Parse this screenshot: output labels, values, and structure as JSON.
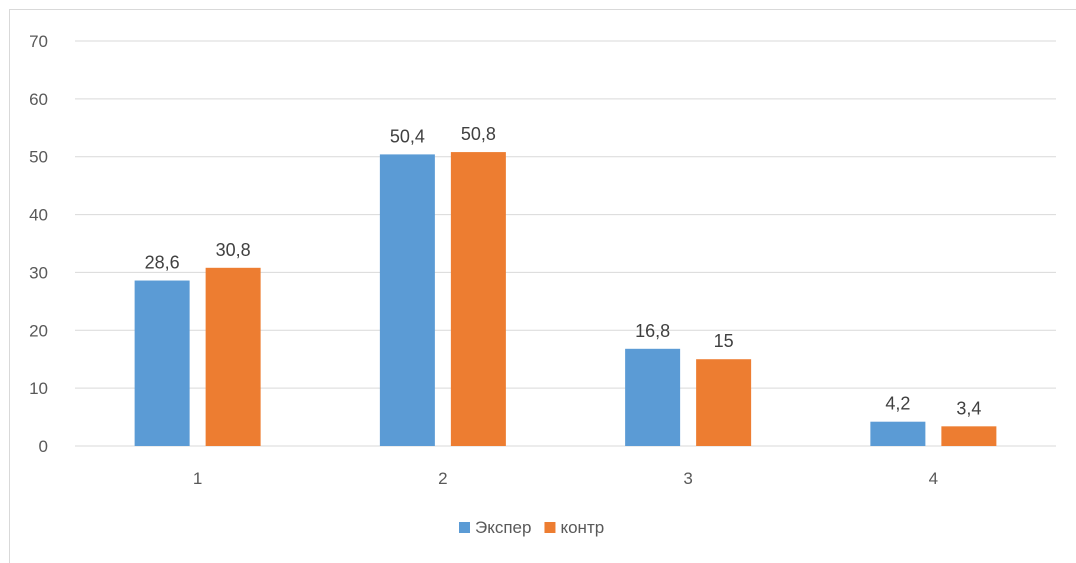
{
  "chart_data": {
    "type": "bar",
    "title": "",
    "xlabel": "",
    "ylabel": "",
    "categories": [
      "1",
      "2",
      "3",
      "4"
    ],
    "series": [
      {
        "name": "Экспер",
        "color": "#5b9bd5",
        "values": [
          28.6,
          50.4,
          16.8,
          4.2
        ],
        "labels": [
          "28,6",
          "50,4",
          "16,8",
          "4,2"
        ]
      },
      {
        "name": "контр",
        "color": "#ed7d31",
        "values": [
          30.8,
          50.8,
          15,
          3.4
        ],
        "labels": [
          "30,8",
          "50,8",
          "15",
          "3,4"
        ]
      }
    ],
    "ylim": [
      0,
      70
    ],
    "yticks": [
      0,
      10,
      20,
      30,
      40,
      50,
      60,
      70
    ],
    "grid": true,
    "legend_position": "bottom",
    "grid_color": "#d9d9d9"
  }
}
